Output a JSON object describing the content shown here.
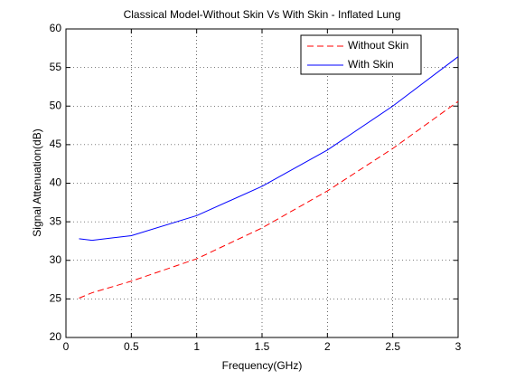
{
  "chart_data": {
    "type": "line",
    "title": "Classical Model-Without Skin Vs With Skin - Inflated Lung",
    "x_label": "Frequency(GHz)",
    "y_label": "Signal Attenuation(dB)",
    "x": [
      0.1,
      0.2,
      0.5,
      1,
      1.5,
      2,
      2.5,
      3
    ],
    "series": [
      {
        "name": "Without Skin",
        "color": "#ff0000",
        "line_style": "dashed",
        "values": [
          25.1,
          25.8,
          27.3,
          30.2,
          34.2,
          39.0,
          44.5,
          50.6
        ]
      },
      {
        "name": "With Skin",
        "color": "#0000ff",
        "line_style": "solid",
        "values": [
          32.8,
          32.6,
          33.2,
          35.8,
          39.6,
          44.3,
          50.0,
          56.4
        ]
      }
    ],
    "xlim": [
      0,
      3
    ],
    "xticks": [
      0,
      0.5,
      1,
      1.5,
      2,
      2.5,
      3
    ],
    "ylim": [
      20,
      60
    ],
    "yticks": [
      20,
      25,
      30,
      35,
      40,
      45,
      50,
      55,
      60
    ],
    "grid": true,
    "legend": "upper-right"
  }
}
